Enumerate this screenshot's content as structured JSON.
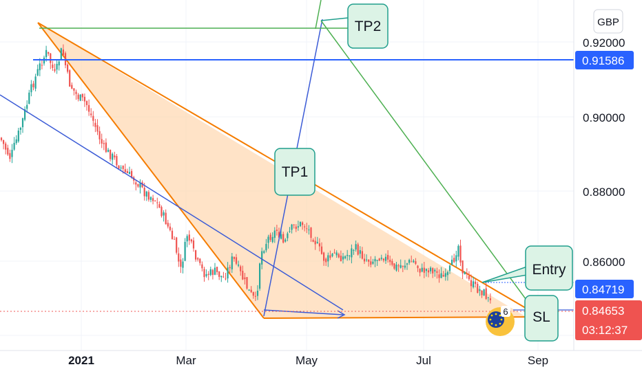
{
  "chart_data": {
    "type": "candlestick",
    "currency": "GBP",
    "x_ticks": [
      "2021",
      "Mar",
      "May",
      "Jul",
      "Sep"
    ],
    "y_ticks": [
      "0.92000",
      "0.90000",
      "0.88000",
      "0.86000"
    ],
    "ylim": [
      0.8405,
      0.9235
    ],
    "price_tags": {
      "resistance": "0.91586",
      "entry": "0.84719",
      "current": "0.84653",
      "countdown": "03:12:37"
    },
    "annotations": {
      "tp1": "TP1",
      "tp2": "TP2",
      "entry": "Entry",
      "sl": "SL",
      "event_count": "6"
    },
    "colors": {
      "up": "#26a69a",
      "down": "#ef5350",
      "triangle_edge": "#f57c00",
      "triangle_fill": "#ffd8b0",
      "blue_line": "#2962ff",
      "green_line": "#4caf50",
      "current_tag": "#ef5350",
      "blue_tag": "#2962ff"
    },
    "levels": {
      "resistance": 0.91586,
      "entry": 0.84719,
      "current": 0.84653
    }
  }
}
